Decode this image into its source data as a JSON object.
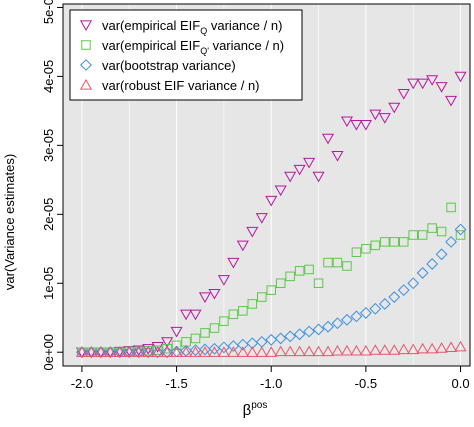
{
  "chart_data": {
    "type": "scatter",
    "title": "",
    "xlabel": "β",
    "xlabel_superscript": "pos",
    "ylabel": "var(Variance estimates)",
    "xlim": [
      -2.1,
      0.05
    ],
    "ylim": [
      -2e-06,
      5.05e-05
    ],
    "x_ticks": [
      -2.0,
      -1.5,
      -1.0,
      -0.5,
      0.0
    ],
    "x_tick_labels": [
      "-2.0",
      "-1.5",
      "-1.0",
      "-0.5",
      "0.0"
    ],
    "y_ticks": [
      0,
      1e-05,
      2e-05,
      3e-05,
      4e-05,
      5e-05
    ],
    "y_tick_labels": [
      "0e+00",
      "1e-05",
      "2e-05",
      "3e-05",
      "4e-05",
      "5e-05"
    ],
    "grid": true,
    "background": "#e6e6e6",
    "legend_position": "top-left",
    "legend": [
      {
        "text": "var(empirical EIF",
        "sub": "Q",
        "rest": " variance / n)",
        "marker": "triangle-down",
        "color": "#b5179e"
      },
      {
        "text": "var(empirical EIF",
        "sub": "Q'",
        "rest": " variance / n)",
        "marker": "square",
        "color": "#5cc94a"
      },
      {
        "text": "var(bootstrap variance)",
        "sub": "",
        "rest": "",
        "marker": "diamond",
        "color": "#3b8fe0"
      },
      {
        "text": "var(robust EIF variance / n)",
        "sub": "",
        "rest": "",
        "marker": "triangle-up",
        "color": "#e8546a"
      }
    ],
    "x": [
      -2.0,
      -1.95,
      -1.9,
      -1.85,
      -1.8,
      -1.75,
      -1.7,
      -1.65,
      -1.6,
      -1.55,
      -1.5,
      -1.45,
      -1.4,
      -1.35,
      -1.3,
      -1.25,
      -1.2,
      -1.15,
      -1.1,
      -1.05,
      -1.0,
      -0.95,
      -0.9,
      -0.85,
      -0.8,
      -0.75,
      -0.7,
      -0.65,
      -0.6,
      -0.55,
      -0.5,
      -0.45,
      -0.4,
      -0.35,
      -0.3,
      -0.25,
      -0.2,
      -0.15,
      -0.1,
      -0.05,
      0.0
    ],
    "series": [
      {
        "name": "var(empirical EIF_Q variance / n)",
        "marker": "triangle-down",
        "color": "#b5179e",
        "values": [
          0.0,
          0.0,
          0.0,
          0.0,
          1e-07,
          2e-07,
          3e-07,
          5e-07,
          8e-07,
          1.5e-06,
          3e-06,
          5.5e-06,
          5.5e-06,
          8e-06,
          8.5e-06,
          1.05e-05,
          1.3e-05,
          1.55e-05,
          1.75e-05,
          1.95e-05,
          2.2e-05,
          2.35e-05,
          2.55e-05,
          2.65e-05,
          2.75e-05,
          2.55e-05,
          3.1e-05,
          2.85e-05,
          3.35e-05,
          3.3e-05,
          3.3e-05,
          3.45e-05,
          3.4e-05,
          3.55e-05,
          3.75e-05,
          3.9e-05,
          3.9e-05,
          3.95e-05,
          3.85e-05,
          3.65e-05,
          4e-05
        ]
      },
      {
        "name": "var(empirical EIF_Q' variance / n)",
        "marker": "square",
        "color": "#5cc94a",
        "values": [
          0.0,
          0.0,
          0.0,
          0.0,
          0.0,
          1e-07,
          1e-07,
          2e-07,
          3e-07,
          5e-07,
          1e-06,
          1.5e-06,
          2e-06,
          2.8e-06,
          3.5e-06,
          4.5e-06,
          5.5e-06,
          6e-06,
          7e-06,
          8e-06,
          9e-06,
          1e-05,
          1.1e-05,
          1.18e-05,
          1.2e-05,
          1e-05,
          1.3e-05,
          1.3e-05,
          1.25e-05,
          1.45e-05,
          1.5e-05,
          1.55e-05,
          1.6e-05,
          1.6e-05,
          1.6e-05,
          1.7e-05,
          1.7e-05,
          1.8e-05,
          1.75e-05,
          2.1e-05,
          1.7e-05
        ]
      },
      {
        "name": "var(bootstrap variance)",
        "marker": "diamond",
        "color": "#3b8fe0",
        "values": [
          0.0,
          0.0,
          0.0,
          0.0,
          0.0,
          0.0,
          0.0,
          0.0,
          0.0,
          0.0,
          1e-07,
          2e-07,
          3e-07,
          4e-07,
          5e-07,
          7e-07,
          9e-07,
          1.1e-06,
          1.3e-06,
          1.5e-06,
          1.8e-06,
          2e-06,
          2.3e-06,
          2.6e-06,
          3e-06,
          3.3e-06,
          3.7e-06,
          4.2e-06,
          4.7e-06,
          5.2e-06,
          5.7e-06,
          6.3e-06,
          7e-06,
          8e-06,
          9e-06,
          1e-05,
          1.15e-05,
          1.28e-05,
          1.42e-05,
          1.6e-05,
          1.78e-05
        ]
      },
      {
        "name": "var(robust EIF variance / n)",
        "marker": "triangle-up",
        "color": "#e8546a",
        "values": [
          0.0,
          0.0,
          0.0,
          0.0,
          0.0,
          0.0,
          0.0,
          0.0,
          0.0,
          0.0,
          0.0,
          0.0,
          0.0,
          0.0,
          0.0,
          0.0,
          0.0,
          0.0,
          0.0,
          0.0,
          0.0,
          1e-07,
          1e-07,
          1e-07,
          1e-07,
          1e-07,
          1e-07,
          2e-07,
          2e-07,
          2e-07,
          2e-07,
          3e-07,
          3e-07,
          3e-07,
          4e-07,
          4e-07,
          5e-07,
          5e-07,
          6e-07,
          7e-07,
          8e-07
        ]
      }
    ]
  }
}
